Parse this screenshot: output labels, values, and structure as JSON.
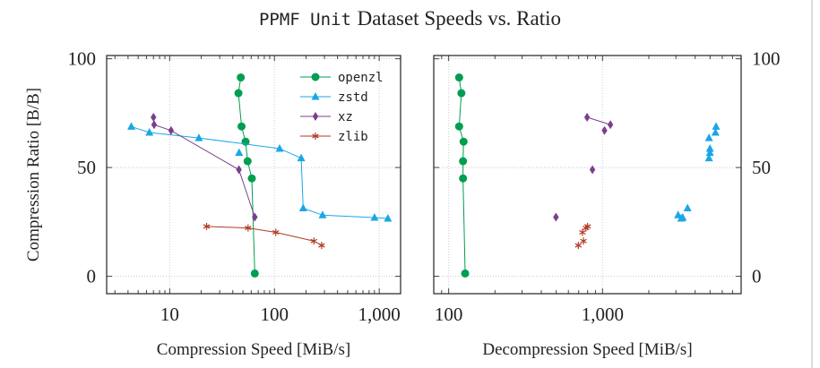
{
  "title": {
    "mono": "PPMF Unit",
    "serif": "Dataset Speeds vs. Ratio"
  },
  "chart_data": [
    {
      "type": "scatter",
      "xlabel": "Compression Speed [MiB/s]",
      "ylabel": "Compression Ratio [B/B]",
      "xscale": "log",
      "xlim": [
        2.5,
        1600
      ],
      "ylim": [
        -8,
        101.5
      ],
      "xticks": [
        10,
        100,
        1000
      ],
      "xtick_labels": [
        "10",
        "100",
        "1,000"
      ],
      "yticks": [
        0,
        50,
        100
      ],
      "ytick_labels": [
        "0",
        "50",
        "100"
      ],
      "grid": true,
      "legend": "top-right",
      "series": [
        {
          "name": "openzl",
          "color": "#009e50",
          "marker": "circle",
          "lines": true,
          "points": [
            [
              47.7,
              91.4,
              true
            ],
            [
              45.3,
              84.2,
              true
            ],
            [
              48.5,
              68.9,
              true
            ],
            [
              53,
              61.9,
              true
            ],
            [
              55.4,
              52.9,
              true
            ],
            [
              60.8,
              45.0,
              true
            ],
            [
              64.9,
              1.3,
              true
            ]
          ]
        },
        {
          "name": "zstd",
          "color": "#1aa7e6",
          "marker": "triangle",
          "lines": true,
          "points": [
            [
              4.3,
              68.8,
              true
            ],
            [
              6.4,
              66.1,
              true
            ],
            [
              19,
              63.6,
              true
            ],
            [
              112,
              58.7,
              true
            ],
            [
              46,
              56.8,
              false
            ],
            [
              180,
              54.3,
              true
            ],
            [
              188,
              31.3,
              true
            ],
            [
              288,
              28.1,
              true
            ],
            [
              902,
              27.0,
              true
            ],
            [
              1210,
              26.6,
              true
            ]
          ]
        },
        {
          "name": "xz",
          "color": "#7b3f8f",
          "marker": "diamond",
          "lines": true,
          "points": [
            [
              7.0,
              73.1,
              true
            ],
            [
              7.1,
              69.7,
              true
            ],
            [
              10.3,
              67.0,
              true
            ],
            [
              45.8,
              49.0,
              true
            ],
            [
              64.9,
              27.2,
              true
            ]
          ]
        },
        {
          "name": "zlib",
          "color": "#b03a24",
          "marker": "star",
          "lines": true,
          "points": [
            [
              22.5,
              22.9,
              true
            ],
            [
              56,
              22.2,
              true
            ],
            [
              103,
              20.2,
              true
            ],
            [
              238,
              16.2,
              true
            ],
            [
              282,
              14.2,
              true
            ]
          ]
        }
      ]
    },
    {
      "type": "scatter",
      "xlabel": "Decompression Speed [MiB/s]",
      "ylabel": "",
      "xscale": "log",
      "xlim": [
        80,
        7960
      ],
      "ylim": [
        -8,
        101.5
      ],
      "xticks": [
        100,
        1000
      ],
      "xtick_labels": [
        "100",
        "1,000"
      ],
      "yticks": [
        0,
        50,
        100
      ],
      "ytick_labels": [
        "0",
        "50",
        "100"
      ],
      "grid": true,
      "series": [
        {
          "name": "openzl",
          "color": "#009e50",
          "marker": "circle",
          "lines": true,
          "points": [
            [
              117,
              91.4,
              true
            ],
            [
              121,
              84.2,
              true
            ],
            [
              117,
              68.9,
              true
            ],
            [
              125,
              61.9,
              true
            ],
            [
              124,
              52.9,
              true
            ],
            [
              124,
              45.0,
              true
            ],
            [
              128,
              1.3,
              true
            ]
          ]
        },
        {
          "name": "zstd",
          "color": "#1aa7e6",
          "marker": "triangle",
          "lines": false,
          "points": [
            [
              5470,
              68.8,
              false
            ],
            [
              5420,
              66.1,
              false
            ],
            [
              4920,
              63.6,
              false
            ],
            [
              4990,
              58.7,
              false
            ],
            [
              4990,
              56.8,
              false
            ],
            [
              4920,
              54.3,
              false
            ],
            [
              3570,
              31.3,
              false
            ],
            [
              3100,
              28.1,
              false
            ],
            [
              3320,
              27.0,
              false
            ],
            [
              3250,
              26.6,
              false
            ]
          ]
        },
        {
          "name": "xz",
          "color": "#7b3f8f",
          "marker": "diamond",
          "lines": true,
          "points": [
            [
              794,
              73.1,
              true
            ],
            [
              1125,
              69.7,
              true
            ],
            [
              1030,
              67.0,
              false
            ],
            [
              860,
              49.0,
              false
            ],
            [
              498,
              27.2,
              false
            ]
          ]
        },
        {
          "name": "zlib",
          "color": "#b03a24",
          "marker": "star",
          "lines": false,
          "points": [
            [
              800,
              22.9,
              false
            ],
            [
              780,
              22.2,
              false
            ],
            [
              741,
              20.2,
              false
            ],
            [
              752,
              16.2,
              false
            ],
            [
              696,
              14.2,
              false
            ]
          ]
        }
      ]
    }
  ]
}
